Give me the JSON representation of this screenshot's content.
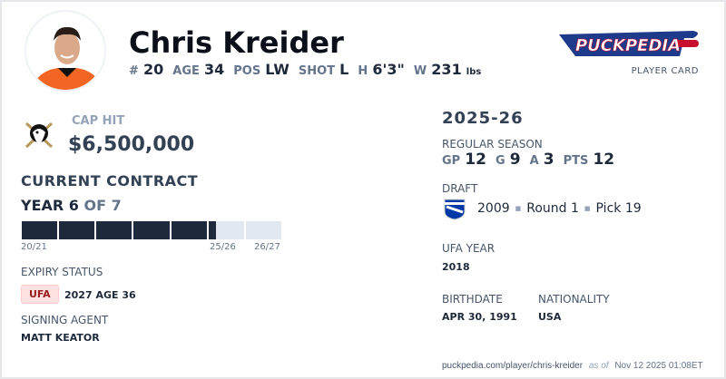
{
  "player": {
    "name": "Chris Kreider",
    "number": "20",
    "age": "34",
    "position": "LW",
    "shot": "L",
    "height": "6'3\"",
    "weight": "231",
    "weight_unit": "lbs"
  },
  "labels": {
    "number": "#",
    "age": "AGE",
    "position": "POS",
    "shot": "SHOT",
    "height": "H",
    "weight": "W"
  },
  "brand": {
    "logo_text": "PuckPedia",
    "subtitle": "PLAYER CARD"
  },
  "cap": {
    "label": "CAP HIT",
    "value": "$6,500,000",
    "team_logo": "anaheim-ducks-logo"
  },
  "contract": {
    "title": "CURRENT CONTRACT",
    "year_label": "YEAR 6",
    "of_label": "OF 7",
    "total_years": 7,
    "progress_years": 5.2,
    "start_label": "20/21",
    "current_label": "25/26",
    "end_label": "26/27"
  },
  "expiry": {
    "label": "EXPIRY STATUS",
    "status": "UFA",
    "detail": "2027 AGE 36"
  },
  "agent": {
    "label": "SIGNING AGENT",
    "name": "MATT KEATOR"
  },
  "season": {
    "title": "2025-26",
    "label": "REGULAR SEASON",
    "stats": [
      {
        "k": "GP",
        "v": "12"
      },
      {
        "k": "G",
        "v": "9"
      },
      {
        "k": "A",
        "v": "3"
      },
      {
        "k": "PTS",
        "v": "12"
      }
    ]
  },
  "draft": {
    "label": "DRAFT",
    "year": "2009",
    "round": "Round 1",
    "pick": "Pick 19",
    "team_logo": "new-york-rangers-logo"
  },
  "ufa": {
    "label": "UFA YEAR",
    "value": "2018"
  },
  "birth": {
    "label": "BIRTHDATE",
    "value": "APR 30, 1991"
  },
  "nationality": {
    "label": "NATIONALITY",
    "value": "USA"
  },
  "footer": {
    "url": "puckpedia.com/player/chris-kreider",
    "as_of": "as of",
    "date": "Nov 12 2025 01:08ET"
  },
  "colors": {
    "dark": "#1e293b",
    "light": "#e2e8f0",
    "ufa_bg": "#fee2e2",
    "ufa_text": "#991b1b",
    "ducks_orange": "#f26522"
  }
}
